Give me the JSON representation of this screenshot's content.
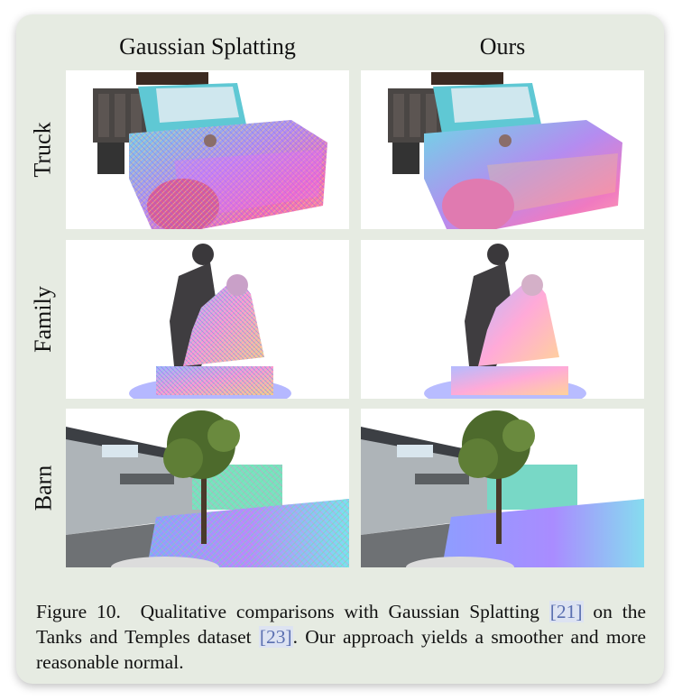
{
  "figure": {
    "columns": [
      "Gaussian Splatting",
      "Ours"
    ],
    "rows": [
      "Truck",
      "Family",
      "Barn"
    ],
    "caption": {
      "label": "Figure 10.",
      "text_1": "Qualitative comparisons with Gaussian Splatting",
      "cite_1": "[21]",
      "text_2": "on the Tanks and Temples dataset",
      "cite_2": "[23]",
      "text_3": ". Our approach yields a smoother and more reasonable normal."
    }
  },
  "colors": {
    "card_background": "#e6ebe2",
    "citation_link": "#5a6fb0"
  }
}
